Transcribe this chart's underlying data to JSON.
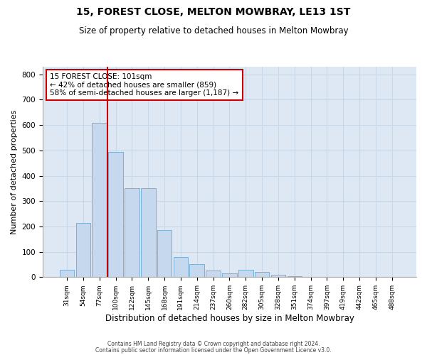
{
  "title": "15, FOREST CLOSE, MELTON MOWBRAY, LE13 1ST",
  "subtitle": "Size of property relative to detached houses in Melton Mowbray",
  "xlabel": "Distribution of detached houses by size in Melton Mowbray",
  "ylabel": "Number of detached properties",
  "footnote1": "Contains HM Land Registry data © Crown copyright and database right 2024.",
  "footnote2": "Contains public sector information licensed under the Open Government Licence v3.0.",
  "bar_labels": [
    "31sqm",
    "54sqm",
    "77sqm",
    "100sqm",
    "122sqm",
    "145sqm",
    "168sqm",
    "191sqm",
    "214sqm",
    "237sqm",
    "260sqm",
    "282sqm",
    "305sqm",
    "328sqm",
    "351sqm",
    "374sqm",
    "397sqm",
    "419sqm",
    "442sqm",
    "465sqm",
    "488sqm"
  ],
  "bar_values": [
    30,
    215,
    610,
    495,
    350,
    350,
    185,
    80,
    50,
    25,
    15,
    30,
    20,
    10,
    5,
    0,
    0,
    0,
    0,
    0,
    0
  ],
  "bar_color": "#c5d8ee",
  "bar_edge_color": "#7bafd4",
  "vline_color": "#cc0000",
  "vline_x_index": 3,
  "property_line_label": "15 FOREST CLOSE: 101sqm",
  "annotation_line1": "← 42% of detached houses are smaller (859)",
  "annotation_line2": "58% of semi-detached houses are larger (1,187) →",
  "annotation_box_color": "#cc0000",
  "ylim": [
    0,
    830
  ],
  "yticks": [
    0,
    100,
    200,
    300,
    400,
    500,
    600,
    700,
    800
  ],
  "grid_color": "#c8d8e8",
  "bg_color": "#dde8f4",
  "title_fontsize": 10,
  "subtitle_fontsize": 8.5,
  "xlabel_fontsize": 8.5,
  "ylabel_fontsize": 8
}
